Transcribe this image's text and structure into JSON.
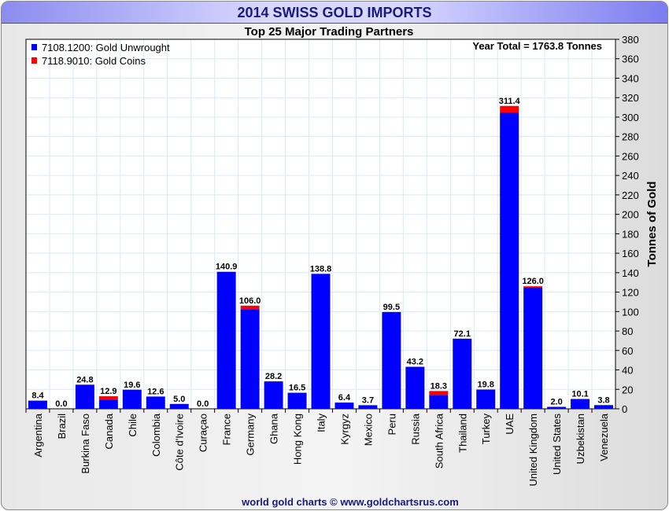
{
  "chart_data": {
    "type": "bar",
    "stacked": true,
    "title": "2014 SWISS GOLD IMPORTS",
    "subtitle": "Top 25 Major Trading Partners",
    "ylabel": "Tonnes of Gold",
    "xlabel": "",
    "ylim": [
      0,
      380
    ],
    "ytick_step": 20,
    "grid": true,
    "annotation": "Year Total = 1763.8 Tonnes",
    "footer": "world gold charts © www.goldchartsrus.com",
    "legend_position": "top-left",
    "categories": [
      "Argentina",
      "Brazil",
      "Burkina Faso",
      "Canada",
      "Chile",
      "Colombia",
      "Côte d'Ivoire",
      "Curaçao",
      "France",
      "Germany",
      "Ghana",
      "Hong Kong",
      "Italy",
      "Kyrgyz",
      "Mexico",
      "Peru",
      "Russia",
      "South Africa",
      "Thailand",
      "Turkey",
      "UAE",
      "United Kingdom",
      "United States",
      "Uzbekistan",
      "Venezuela"
    ],
    "totals": [
      "8.4",
      "0.0",
      "24.8",
      "12.9",
      "19.6",
      "12.6",
      "5.0",
      "0.0",
      "140.9",
      "106.0",
      "28.2",
      "16.5",
      "138.8",
      "6.4",
      "3.7",
      "99.5",
      "43.2",
      "18.3",
      "72.1",
      "19.8",
      "311.4",
      "126.0",
      "2.0",
      "10.1",
      "3.8"
    ],
    "series": [
      {
        "name": "7108.1200: Gold Unwrought",
        "color": "#0000ff",
        "values": [
          8.4,
          0,
          24.8,
          9.5,
          19.6,
          12.6,
          5.0,
          0,
          140.9,
          102.5,
          28.2,
          16.5,
          138.8,
          6.4,
          3.7,
          99.5,
          43.2,
          14.3,
          72.1,
          19.8,
          304.4,
          124.5,
          2.0,
          10.1,
          3.8
        ]
      },
      {
        "name": "7118.9010: Gold Coins",
        "color": "#ff0000",
        "values": [
          0,
          0,
          0,
          3.4,
          0,
          0,
          0,
          0,
          0,
          3.5,
          0,
          0,
          0,
          0,
          0,
          0,
          0,
          4.0,
          0,
          0,
          7.0,
          1.5,
          0,
          0,
          0
        ]
      }
    ]
  }
}
